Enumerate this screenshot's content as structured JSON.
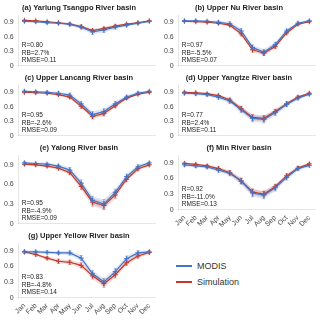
{
  "chart_data": [
    {
      "type": "line",
      "title": "(a) Yarlung Tsangpo River basin",
      "annotations": [
        "R=0.80",
        "RB=2.7%",
        "RMSE=0.11"
      ],
      "categories": [
        "Jan",
        "Feb",
        "Mar",
        "Apr",
        "May",
        "Jun",
        "Jul",
        "Aug",
        "Sep",
        "Oct",
        "Nov",
        "Dec"
      ],
      "series": [
        {
          "name": "MODIS",
          "color": "#4472C4",
          "marker": "plus",
          "values": [
            0.92,
            0.91,
            0.89,
            0.88,
            0.86,
            0.8,
            0.7,
            0.74,
            0.8,
            0.84,
            0.88,
            0.92
          ],
          "errors": [
            0.02,
            0.02,
            0.02,
            0.02,
            0.03,
            0.04,
            0.05,
            0.05,
            0.04,
            0.03,
            0.02,
            0.02
          ]
        },
        {
          "name": "Simulation",
          "color": "#C0392B",
          "marker": "plus",
          "values": [
            0.94,
            0.93,
            0.91,
            0.89,
            0.86,
            0.81,
            0.73,
            0.77,
            0.82,
            0.86,
            0.89,
            0.93
          ],
          "errors": [
            0.01,
            0.01,
            0.02,
            0.02,
            0.02,
            0.03,
            0.03,
            0.03,
            0.03,
            0.02,
            0.02,
            0.01
          ]
        }
      ],
      "ylim": [
        0,
        1.05
      ],
      "yticks": [
        0,
        0.3,
        0.6,
        0.9
      ],
      "grid": false,
      "tick_labels": "y"
    },
    {
      "type": "line",
      "title": "(b) Upper Nu River basin",
      "annotations": [
        "R=0.97",
        "RB=-5.5%",
        "RMSE=0.07"
      ],
      "categories": [
        "Jan",
        "Feb",
        "Mar",
        "Apr",
        "May",
        "Jun",
        "Jul",
        "Aug",
        "Sep",
        "Oct",
        "Nov",
        "Dec"
      ],
      "series": [
        {
          "name": "MODIS",
          "color": "#4472C4",
          "marker": "plus",
          "values": [
            0.93,
            0.93,
            0.92,
            0.9,
            0.87,
            0.72,
            0.38,
            0.28,
            0.44,
            0.72,
            0.88,
            0.93
          ],
          "errors": [
            0.02,
            0.02,
            0.02,
            0.03,
            0.04,
            0.05,
            0.05,
            0.06,
            0.05,
            0.04,
            0.03,
            0.02
          ]
        },
        {
          "name": "Simulation",
          "color": "#C0392B",
          "marker": "plus",
          "values": [
            0.92,
            0.91,
            0.9,
            0.88,
            0.84,
            0.66,
            0.33,
            0.26,
            0.4,
            0.68,
            0.86,
            0.91
          ],
          "errors": [
            0.01,
            0.01,
            0.02,
            0.02,
            0.03,
            0.04,
            0.05,
            0.05,
            0.04,
            0.03,
            0.02,
            0.01
          ]
        }
      ],
      "ylim": [
        0,
        1.05
      ],
      "yticks": [
        0,
        0.3,
        0.6,
        0.9
      ],
      "grid": false,
      "tick_labels": "y"
    },
    {
      "type": "line",
      "title": "(c) Upper Lancang River basin",
      "annotations": [
        "R=0.95",
        "RB=-2.6%",
        "RMSE=0.09"
      ],
      "categories": [
        "Jan",
        "Feb",
        "Mar",
        "Apr",
        "May",
        "Jun",
        "Jul",
        "Aug",
        "Sep",
        "Oct",
        "Nov",
        "Dec"
      ],
      "series": [
        {
          "name": "MODIS",
          "color": "#4472C4",
          "marker": "plus",
          "values": [
            0.92,
            0.91,
            0.9,
            0.88,
            0.84,
            0.66,
            0.44,
            0.5,
            0.66,
            0.8,
            0.88,
            0.92
          ],
          "errors": [
            0.02,
            0.02,
            0.02,
            0.03,
            0.04,
            0.05,
            0.06,
            0.06,
            0.05,
            0.04,
            0.03,
            0.02
          ]
        },
        {
          "name": "Simulation",
          "color": "#C0392B",
          "marker": "plus",
          "values": [
            0.9,
            0.89,
            0.88,
            0.85,
            0.8,
            0.61,
            0.4,
            0.46,
            0.62,
            0.78,
            0.86,
            0.9
          ],
          "errors": [
            0.02,
            0.02,
            0.02,
            0.02,
            0.03,
            0.04,
            0.05,
            0.05,
            0.04,
            0.03,
            0.02,
            0.02
          ]
        }
      ],
      "ylim": [
        0,
        1.05
      ],
      "yticks": [
        0,
        0.3,
        0.6,
        0.9
      ],
      "grid": false,
      "tick_labels": "y"
    },
    {
      "type": "line",
      "title": "(d) Upper Yangtze River basin",
      "annotations": [
        "R=0.77",
        "RB=2.4%",
        "RMSE=0.11"
      ],
      "categories": [
        "Jan",
        "Feb",
        "Mar",
        "Apr",
        "May",
        "Jun",
        "Jul",
        "Aug",
        "Sep",
        "Oct",
        "Nov",
        "Dec"
      ],
      "series": [
        {
          "name": "MODIS",
          "color": "#4472C4",
          "marker": "plus",
          "values": [
            0.88,
            0.87,
            0.85,
            0.8,
            0.72,
            0.54,
            0.36,
            0.34,
            0.48,
            0.65,
            0.78,
            0.86
          ],
          "errors": [
            0.03,
            0.03,
            0.03,
            0.04,
            0.05,
            0.06,
            0.07,
            0.07,
            0.06,
            0.05,
            0.04,
            0.03
          ]
        },
        {
          "name": "Simulation",
          "color": "#C0392B",
          "marker": "plus",
          "values": [
            0.9,
            0.89,
            0.87,
            0.83,
            0.74,
            0.56,
            0.38,
            0.36,
            0.5,
            0.66,
            0.8,
            0.88
          ],
          "errors": [
            0.02,
            0.02,
            0.02,
            0.03,
            0.04,
            0.05,
            0.06,
            0.06,
            0.05,
            0.04,
            0.03,
            0.02
          ]
        }
      ],
      "ylim": [
        0,
        1.05
      ],
      "yticks": [
        0,
        0.3,
        0.6,
        0.9
      ],
      "grid": false,
      "tick_labels": "y"
    },
    {
      "type": "line",
      "title": "(e) Yalong River basin",
      "annotations": [
        "R=0.95",
        "RB=-4.9%",
        "RMSE=0.09"
      ],
      "categories": [
        "Jan",
        "Feb",
        "Mar",
        "Apr",
        "May",
        "Jun",
        "Jul",
        "Aug",
        "Sep",
        "Oct",
        "Nov",
        "Dec"
      ],
      "series": [
        {
          "name": "MODIS",
          "color": "#4472C4",
          "marker": "plus",
          "values": [
            0.93,
            0.92,
            0.91,
            0.88,
            0.82,
            0.62,
            0.36,
            0.3,
            0.48,
            0.72,
            0.87,
            0.93
          ],
          "errors": [
            0.02,
            0.02,
            0.02,
            0.03,
            0.04,
            0.05,
            0.06,
            0.07,
            0.05,
            0.04,
            0.03,
            0.02
          ]
        },
        {
          "name": "Simulation",
          "color": "#C0392B",
          "marker": "plus",
          "values": [
            0.91,
            0.9,
            0.88,
            0.85,
            0.78,
            0.57,
            0.33,
            0.28,
            0.44,
            0.68,
            0.84,
            0.9
          ],
          "errors": [
            0.02,
            0.02,
            0.02,
            0.03,
            0.03,
            0.05,
            0.06,
            0.06,
            0.05,
            0.04,
            0.03,
            0.02
          ]
        }
      ],
      "ylim": [
        0,
        1.05
      ],
      "yticks": [
        0,
        0.3,
        0.6,
        0.9
      ],
      "grid": false,
      "tick_labels": "y"
    },
    {
      "type": "line",
      "title": "(f) Min River basin",
      "annotations": [
        "R=0.92",
        "RB=-11.0%",
        "RMSE=0.13"
      ],
      "categories": [
        "Jan",
        "Feb",
        "Mar",
        "Apr",
        "May",
        "Jun",
        "Jul",
        "Aug",
        "Sep",
        "Oct",
        "Nov",
        "Dec"
      ],
      "series": [
        {
          "name": "MODIS",
          "color": "#4472C4",
          "marker": "plus",
          "values": [
            0.86,
            0.84,
            0.82,
            0.76,
            0.7,
            0.55,
            0.32,
            0.28,
            0.42,
            0.62,
            0.79,
            0.85
          ],
          "errors": [
            0.03,
            0.03,
            0.03,
            0.04,
            0.05,
            0.06,
            0.07,
            0.07,
            0.06,
            0.05,
            0.04,
            0.03
          ]
        },
        {
          "name": "Simulation",
          "color": "#C0392B",
          "marker": "plus",
          "values": [
            0.89,
            0.87,
            0.84,
            0.79,
            0.71,
            0.55,
            0.34,
            0.3,
            0.44,
            0.65,
            0.8,
            0.88
          ],
          "errors": [
            0.02,
            0.02,
            0.03,
            0.03,
            0.04,
            0.05,
            0.06,
            0.06,
            0.05,
            0.04,
            0.03,
            0.02
          ]
        }
      ],
      "ylim": [
        0,
        1.05
      ],
      "yticks": [
        0,
        0.3,
        0.6,
        0.9
      ],
      "grid": false
    },
    {
      "type": "line",
      "title": "(g) Upper Yellow River basin",
      "annotations": [
        "R=0.83",
        "RB=-4.8%",
        "RMSE=0.14"
      ],
      "categories": [
        "Jan",
        "Feb",
        "Mar",
        "Apr",
        "May",
        "Jun",
        "Jul",
        "Aug",
        "Sep",
        "Oct",
        "Nov",
        "Dec"
      ],
      "series": [
        {
          "name": "MODIS",
          "color": "#4472C4",
          "marker": "plus",
          "values": [
            0.88,
            0.88,
            0.87,
            0.86,
            0.86,
            0.76,
            0.46,
            0.3,
            0.5,
            0.75,
            0.86,
            0.88
          ],
          "errors": [
            0.03,
            0.03,
            0.03,
            0.03,
            0.04,
            0.05,
            0.06,
            0.07,
            0.06,
            0.05,
            0.04,
            0.03
          ]
        },
        {
          "name": "Simulation",
          "color": "#C0392B",
          "marker": "plus",
          "values": [
            0.88,
            0.83,
            0.76,
            0.7,
            0.68,
            0.62,
            0.42,
            0.27,
            0.44,
            0.67,
            0.8,
            0.87
          ],
          "errors": [
            0.02,
            0.03,
            0.03,
            0.04,
            0.04,
            0.05,
            0.06,
            0.07,
            0.06,
            0.05,
            0.04,
            0.03
          ]
        }
      ],
      "ylim": [
        0,
        1.05
      ],
      "yticks": [
        0,
        0.3,
        0.6,
        0.9
      ],
      "grid": false,
      "legend": "right"
    }
  ]
}
